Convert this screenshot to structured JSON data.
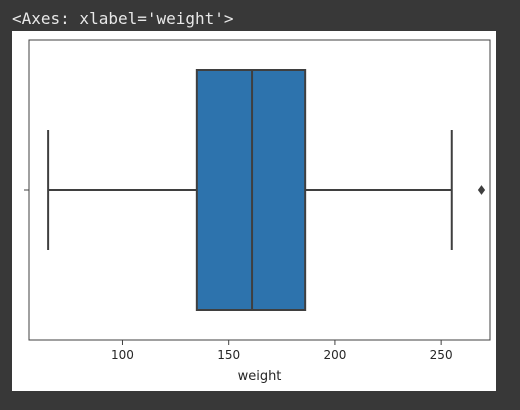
{
  "output": {
    "repr": "<Axes: xlabel='weight'>"
  },
  "colors": {
    "box_fill": "#2d73ad",
    "line": "#3f3f3f",
    "frame": "#404040",
    "page_bg": "#383838"
  },
  "chart_data": {
    "type": "boxplot",
    "orientation": "horizontal",
    "title": "",
    "xlabel": "weight",
    "ylabel": "",
    "xlim": [
      56,
      273
    ],
    "xticks": [
      100,
      150,
      200,
      250
    ],
    "yticks": [
      ""
    ],
    "grid": false,
    "legend": null,
    "series": [
      {
        "min": 65,
        "q1": 135,
        "median": 161,
        "q3": 186,
        "max": 255,
        "outliers": [
          269
        ]
      }
    ]
  }
}
